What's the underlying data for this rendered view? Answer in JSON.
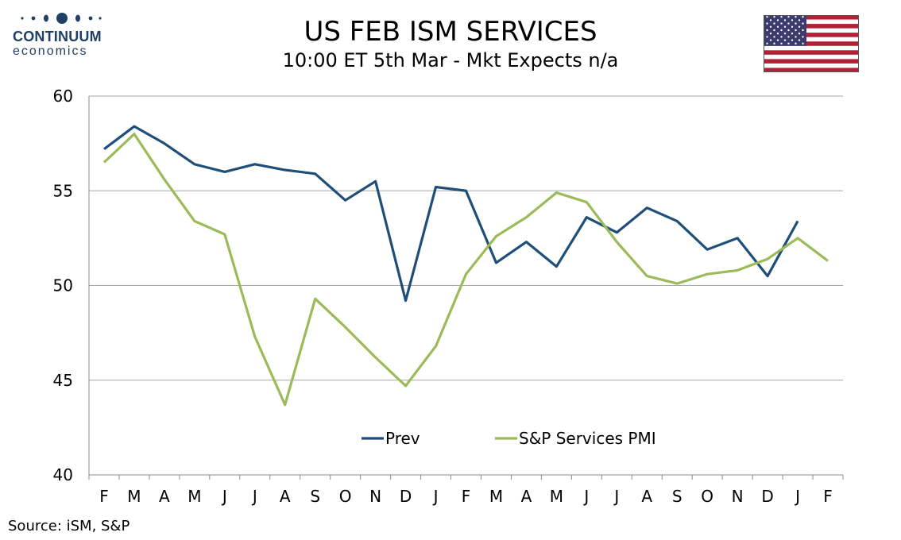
{
  "logo": {
    "name": "CONTINUUM",
    "tagline": "economics",
    "color": "#1f3f63"
  },
  "header": {
    "title": "US FEB ISM SERVICES",
    "subtitle": "10:00 ET 5th Mar - Mkt Expects n/a"
  },
  "flag": {
    "icon": "us-flag-icon"
  },
  "source": "Source: iSM, S&P",
  "chart_data": {
    "type": "line",
    "title": "",
    "xlabel": "",
    "ylabel": "",
    "categories": [
      "F",
      "M",
      "A",
      "M",
      "J",
      "J",
      "A",
      "S",
      "O",
      "N",
      "D",
      "J",
      "F",
      "M",
      "A",
      "M",
      "J",
      "J",
      "A",
      "S",
      "O",
      "N",
      "D",
      "J",
      "F"
    ],
    "ylim": [
      40,
      60
    ],
    "yticks": [
      40,
      45,
      50,
      55,
      60
    ],
    "grid": true,
    "legend": "bottom-center",
    "series": [
      {
        "name": "Prev",
        "color": "#1f4e79",
        "values": [
          57.2,
          58.4,
          57.5,
          56.4,
          56.0,
          56.4,
          56.1,
          55.9,
          54.5,
          55.5,
          49.2,
          55.2,
          55.0,
          51.2,
          52.3,
          51.0,
          53.6,
          52.8,
          54.1,
          53.4,
          51.9,
          52.5,
          50.5,
          53.4,
          null
        ]
      },
      {
        "name": "S&P Services PMI",
        "color": "#9bbb59",
        "values": [
          56.5,
          58.0,
          55.6,
          53.4,
          52.7,
          47.3,
          43.7,
          49.3,
          47.8,
          46.2,
          44.7,
          46.8,
          50.6,
          52.6,
          53.6,
          54.9,
          54.4,
          52.3,
          50.5,
          50.1,
          50.6,
          50.8,
          51.4,
          52.5,
          51.3
        ]
      }
    ]
  }
}
